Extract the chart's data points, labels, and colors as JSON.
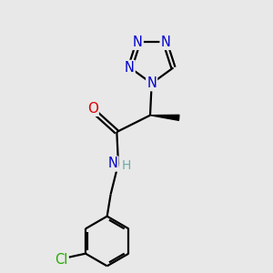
{
  "background_color": "#e8e8e8",
  "bond_color": "#000000",
  "atom_colors": {
    "N": "#0000cc",
    "O": "#dd0000",
    "Cl": "#22aa00",
    "C": "#000000",
    "H": "#6aada8"
  },
  "lw": 1.6,
  "font_size_atom": 10.5
}
